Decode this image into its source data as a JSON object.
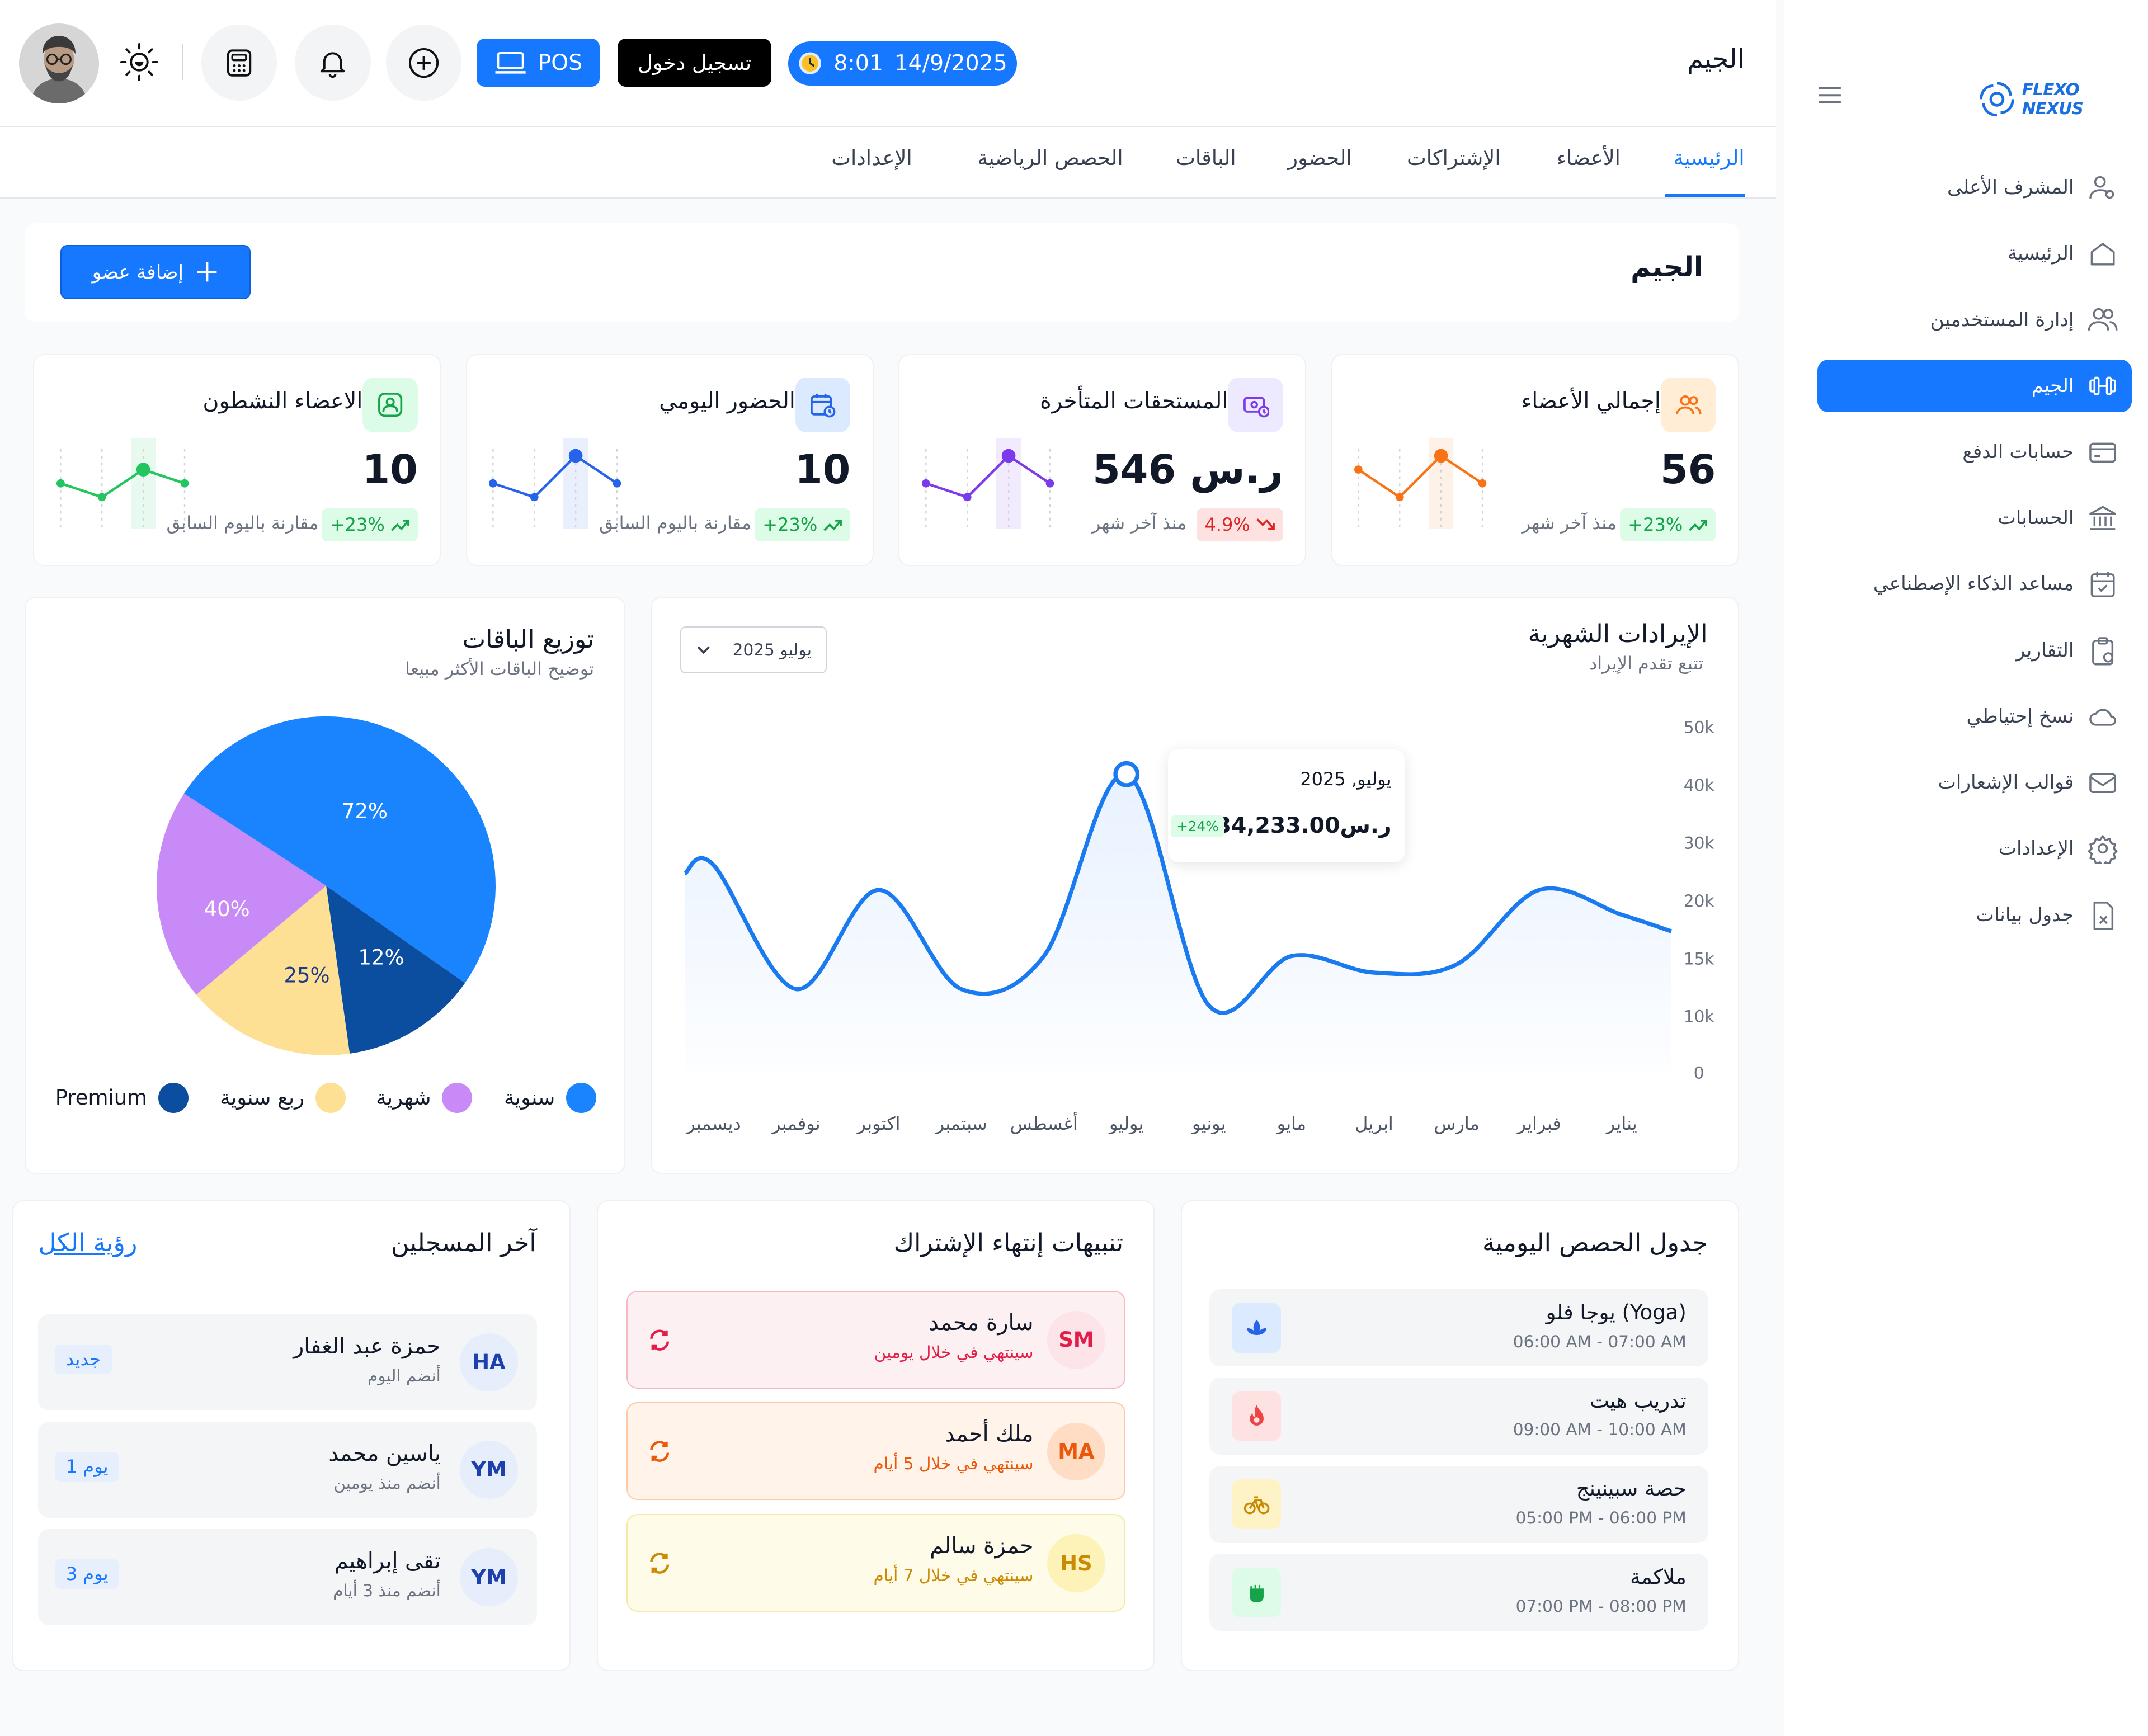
{
  "sidebar": {
    "brand": "FLEXO NEXUS",
    "items": [
      {
        "label": "المشرف الأعلى",
        "icon": "user-gear-icon"
      },
      {
        "label": "الرئيسية",
        "icon": "home-icon"
      },
      {
        "label": "إدارة المستخدمين",
        "icon": "users-icon"
      },
      {
        "label": "الجيم",
        "icon": "dumbbell-icon",
        "active": true
      },
      {
        "label": "حسابات الدفع",
        "icon": "credit-card-icon"
      },
      {
        "label": "الحسابات",
        "icon": "bank-icon"
      },
      {
        "label": "مساعد الذكاء الإصطناعي",
        "icon": "calendar-icon"
      },
      {
        "label": "التقارير",
        "icon": "clipboard-icon"
      },
      {
        "label": "نسخ إحتياطي",
        "icon": "cloud-icon"
      },
      {
        "label": "قوالب الإشعارات",
        "icon": "mail-icon"
      },
      {
        "label": "الإعدادات",
        "icon": "gear-icon"
      },
      {
        "label": "جدول بيانات",
        "icon": "spreadsheet-icon"
      }
    ]
  },
  "header": {
    "page_name": "الجيم",
    "datetime_time": "8:01",
    "datetime_date": "14/9/2025",
    "login_label": "تسجيل دخول",
    "pos_label": "POS"
  },
  "tabs": [
    "الرئيسية",
    "الأعضاء",
    "الإشتراكات",
    "الحضور",
    "الباقات",
    "الحصص الرياضية",
    "الإعدادات"
  ],
  "page": {
    "title": "الجيم",
    "add_member_label": "إضافة عضو"
  },
  "stats": [
    {
      "title": "إجمالي الأعضاء",
      "value": "56",
      "badge": "+23%",
      "badge_type": "up",
      "sub": "منذ آخر شهر",
      "color": "#f97316",
      "series": [
        3,
        1,
        4,
        2
      ]
    },
    {
      "title": "المستحقات المتأخرة",
      "value": "546 ر.س",
      "badge": "4.9%",
      "badge_type": "down",
      "sub": "منذ آخر شهر",
      "color": "#7c3aed",
      "series": [
        2,
        1,
        4,
        2
      ]
    },
    {
      "title": "الحضور اليومي",
      "value": "10",
      "badge": "+23%",
      "badge_type": "up",
      "sub": "مقارنة باليوم السابق",
      "color": "#2563eb",
      "series": [
        2,
        1,
        4,
        2
      ]
    },
    {
      "title": "الاعضاء النشطون",
      "value": "10",
      "badge": "+23%",
      "badge_type": "up",
      "sub": "مقارنة باليوم السابق",
      "color": "#22c55e",
      "series": [
        2,
        1,
        3,
        2
      ]
    }
  ],
  "revenue": {
    "title": "الإيرادات الشهرية",
    "subtitle": "تتبع تقدم الإيراد",
    "selected_month": "يوليو 2025",
    "tooltip_date": "يوليو, 2025",
    "tooltip_value": "34,233.00ر.س",
    "tooltip_badge": "+24%"
  },
  "packages": {
    "title": "توزيع الباقات",
    "subtitle": "توضيح الباقات الأكثر مبيعا"
  },
  "chart_data": [
    {
      "type": "area",
      "x": [
        "يناير",
        "فبراير",
        "مارس",
        "ابريل",
        "مايو",
        "يونيو",
        "يوليو",
        "أغسطس",
        "سبتمبر",
        "اكتوبر",
        "نوفمبر",
        "ديسمبر"
      ],
      "yticks": [
        "0",
        "10k",
        "15k",
        "20k",
        "30k",
        "40k",
        "50k"
      ],
      "points_y": [
        19,
        22,
        13,
        12,
        14,
        8,
        36,
        14,
        10,
        22,
        10,
        25
      ]
    },
    {
      "type": "pie",
      "slices": [
        {
          "name": "سنوية",
          "value": 72,
          "label": "72%",
          "color": "#1a84ff"
        },
        {
          "name": "Premium",
          "value": 12,
          "label": "12%",
          "color": "#0b4d9e"
        },
        {
          "name": "ربع سنوية",
          "value": 25,
          "label": "25%",
          "color": "#fde093"
        },
        {
          "name": "شهرية",
          "value": 40,
          "label": "40%",
          "color": "#c88af7"
        }
      ]
    }
  ],
  "recent": {
    "title": "آخر المسجلين",
    "see_all": "رؤية الكل",
    "items": [
      {
        "initials": "HA",
        "name": "حمزة عبد الغفار",
        "sub": "أنضم اليوم",
        "badge": "جديد"
      },
      {
        "initials": "YM",
        "name": "ياسين محمد",
        "sub": "أنضم منذ يومين",
        "badge": "1 يوم"
      },
      {
        "initials": "YM",
        "name": "تقى إبراهيم",
        "sub": "أنضم منذ 3 أيام",
        "badge": "3 يوم"
      }
    ]
  },
  "expiry": {
    "title": "تنبيهات إنتهاء الإشتراك",
    "items": [
      {
        "initials": "SM",
        "name": "سارة محمد",
        "sub": "سينتهي في خلال يومين",
        "bg": "#fdf0f2",
        "border": "#f7b8c2",
        "accent": "#e11d48",
        "avatar_bg": "#fde4e8"
      },
      {
        "initials": "MA",
        "name": "ملك أحمد",
        "sub": "سينتهي في خلال 5 أيام",
        "bg": "#fff3ea",
        "border": "#fbc9a6",
        "accent": "#ea580c",
        "avatar_bg": "#ffddc4"
      },
      {
        "initials": "HS",
        "name": "حمزة سالم",
        "sub": "سينتهي في خلال 7 أيام",
        "bg": "#fefbe8",
        "border": "#f6e8a6",
        "accent": "#ca8a04",
        "avatar_bg": "#fdf2b8"
      }
    ]
  },
  "classes": {
    "title": "جدول الحصص اليومية",
    "items": [
      {
        "name": "يوجا فلو (Yoga)",
        "time": "06:00 AM - 07:00 AM",
        "icon": "lotus-icon",
        "bg": "#dbeafe",
        "color": "#2563eb"
      },
      {
        "name": "تدريب هيت",
        "time": "09:00 AM - 10:00 AM",
        "icon": "flame-icon",
        "bg": "#fee2e2",
        "color": "#ef4444"
      },
      {
        "name": "حصة سبينينج",
        "time": "05:00 PM - 06:00 PM",
        "icon": "bicycle-icon",
        "bg": "#fef3c7",
        "color": "#ca8a04"
      },
      {
        "name": "ملاكمة",
        "time": "07:00 PM - 08:00 PM",
        "icon": "fist-icon",
        "bg": "#dcfce7",
        "color": "#16a34a"
      }
    ]
  }
}
